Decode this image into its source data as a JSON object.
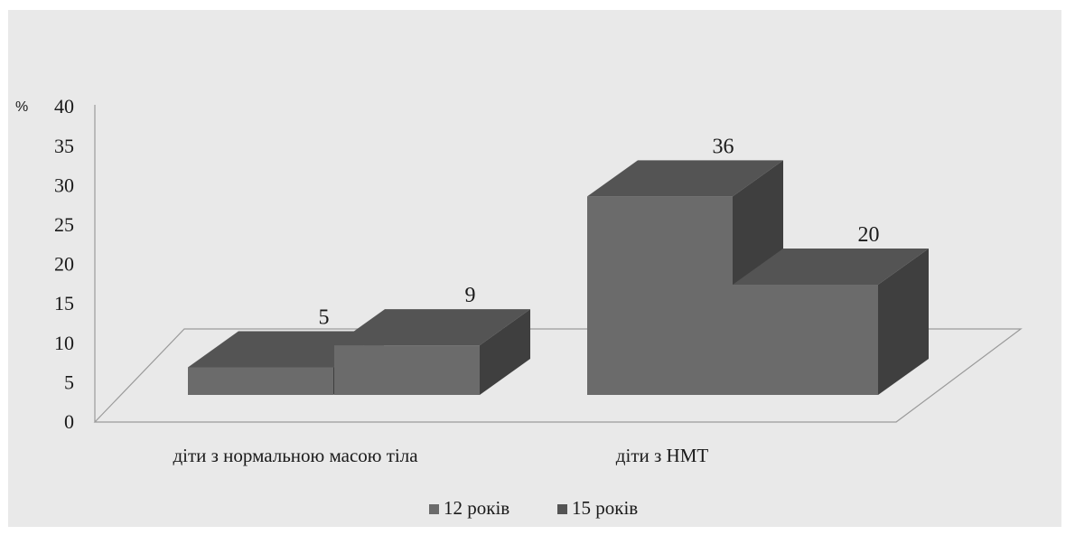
{
  "chart_data": {
    "type": "bar",
    "variant": "3d-column",
    "y_unit": "%",
    "ylim": [
      0,
      40
    ],
    "y_ticks": [
      0,
      5,
      10,
      15,
      20,
      25,
      30,
      35,
      40
    ],
    "categories": [
      "діти з нормальною масою тіла",
      "діти з НМТ"
    ],
    "series": [
      {
        "name": "12 років",
        "values": [
          5,
          36
        ]
      },
      {
        "name": "15 років",
        "values": [
          9,
          20
        ]
      }
    ],
    "legend_position": "bottom",
    "grid": false,
    "colors": {
      "front": "#6b6b6b",
      "top": "#545454",
      "side": "#3f3f3f",
      "floor_line": "#9a9a9a"
    }
  }
}
